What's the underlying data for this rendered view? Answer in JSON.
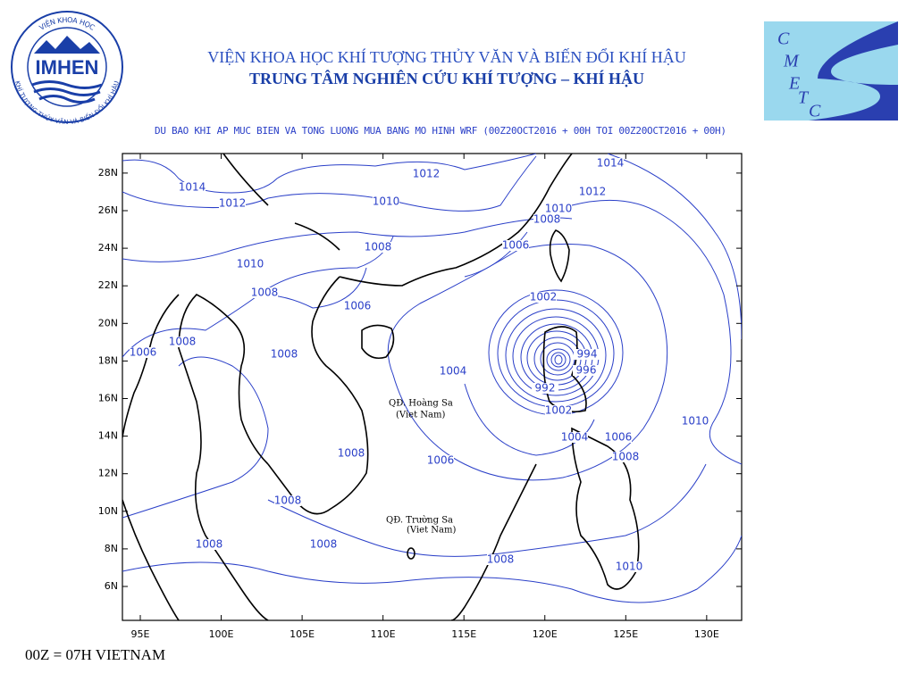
{
  "header": {
    "institute": "VIỆN KHOA HỌC KHÍ TƯỢNG THỦY VĂN VÀ BIẾN ĐỔI KHÍ HẬU",
    "center": "TRUNG TÂM NGHIÊN CỨU KHÍ TƯỢNG – KHÍ HẬU",
    "forecast_title": "DU BAO KHI AP MUC BIEN VA TONG LUONG MUA BANG MO HINH WRF (00Z20OCT2016 + 00H TOI 00Z20OCT2016 + 00H)"
  },
  "logos": {
    "imhen": "IMHEN",
    "imhen_ring_top": "VIỆN KHOA HỌC",
    "imhen_ring_bottom": "KHÍ TƯỢNG THỦY VĂN VÀ BIẾN ĐỔI KHÍ HẬU",
    "cmetc_letters": [
      "C",
      "M",
      "E",
      "T",
      "C"
    ]
  },
  "map": {
    "lon_labels": [
      "95E",
      "100E",
      "105E",
      "110E",
      "115E",
      "120E",
      "125E",
      "130E"
    ],
    "lat_labels": [
      "6N",
      "8N",
      "10N",
      "12N",
      "14N",
      "16N",
      "18N",
      "20N",
      "22N",
      "24N",
      "26N",
      "28N"
    ],
    "annotations": [
      "QĐ. Hoàng Sa",
      "(Viet Nam)",
      "QĐ. Trường Sa",
      "(Viet Nam)"
    ],
    "contour_labels": [
      "1014",
      "1012",
      "1012",
      "1014",
      "1012",
      "1010",
      "1010",
      "1008",
      "1006",
      "1008",
      "1010",
      "1008",
      "1006",
      "1002",
      "1008",
      "1006",
      "1008",
      "1004",
      "994",
      "996",
      "992",
      "1002",
      "1004",
      "1006",
      "1010",
      "1008",
      "1006",
      "1008",
      "1008",
      "1008",
      "1008",
      "1008",
      "1010"
    ]
  },
  "footer": "00Z = 07H VIETNAM"
}
